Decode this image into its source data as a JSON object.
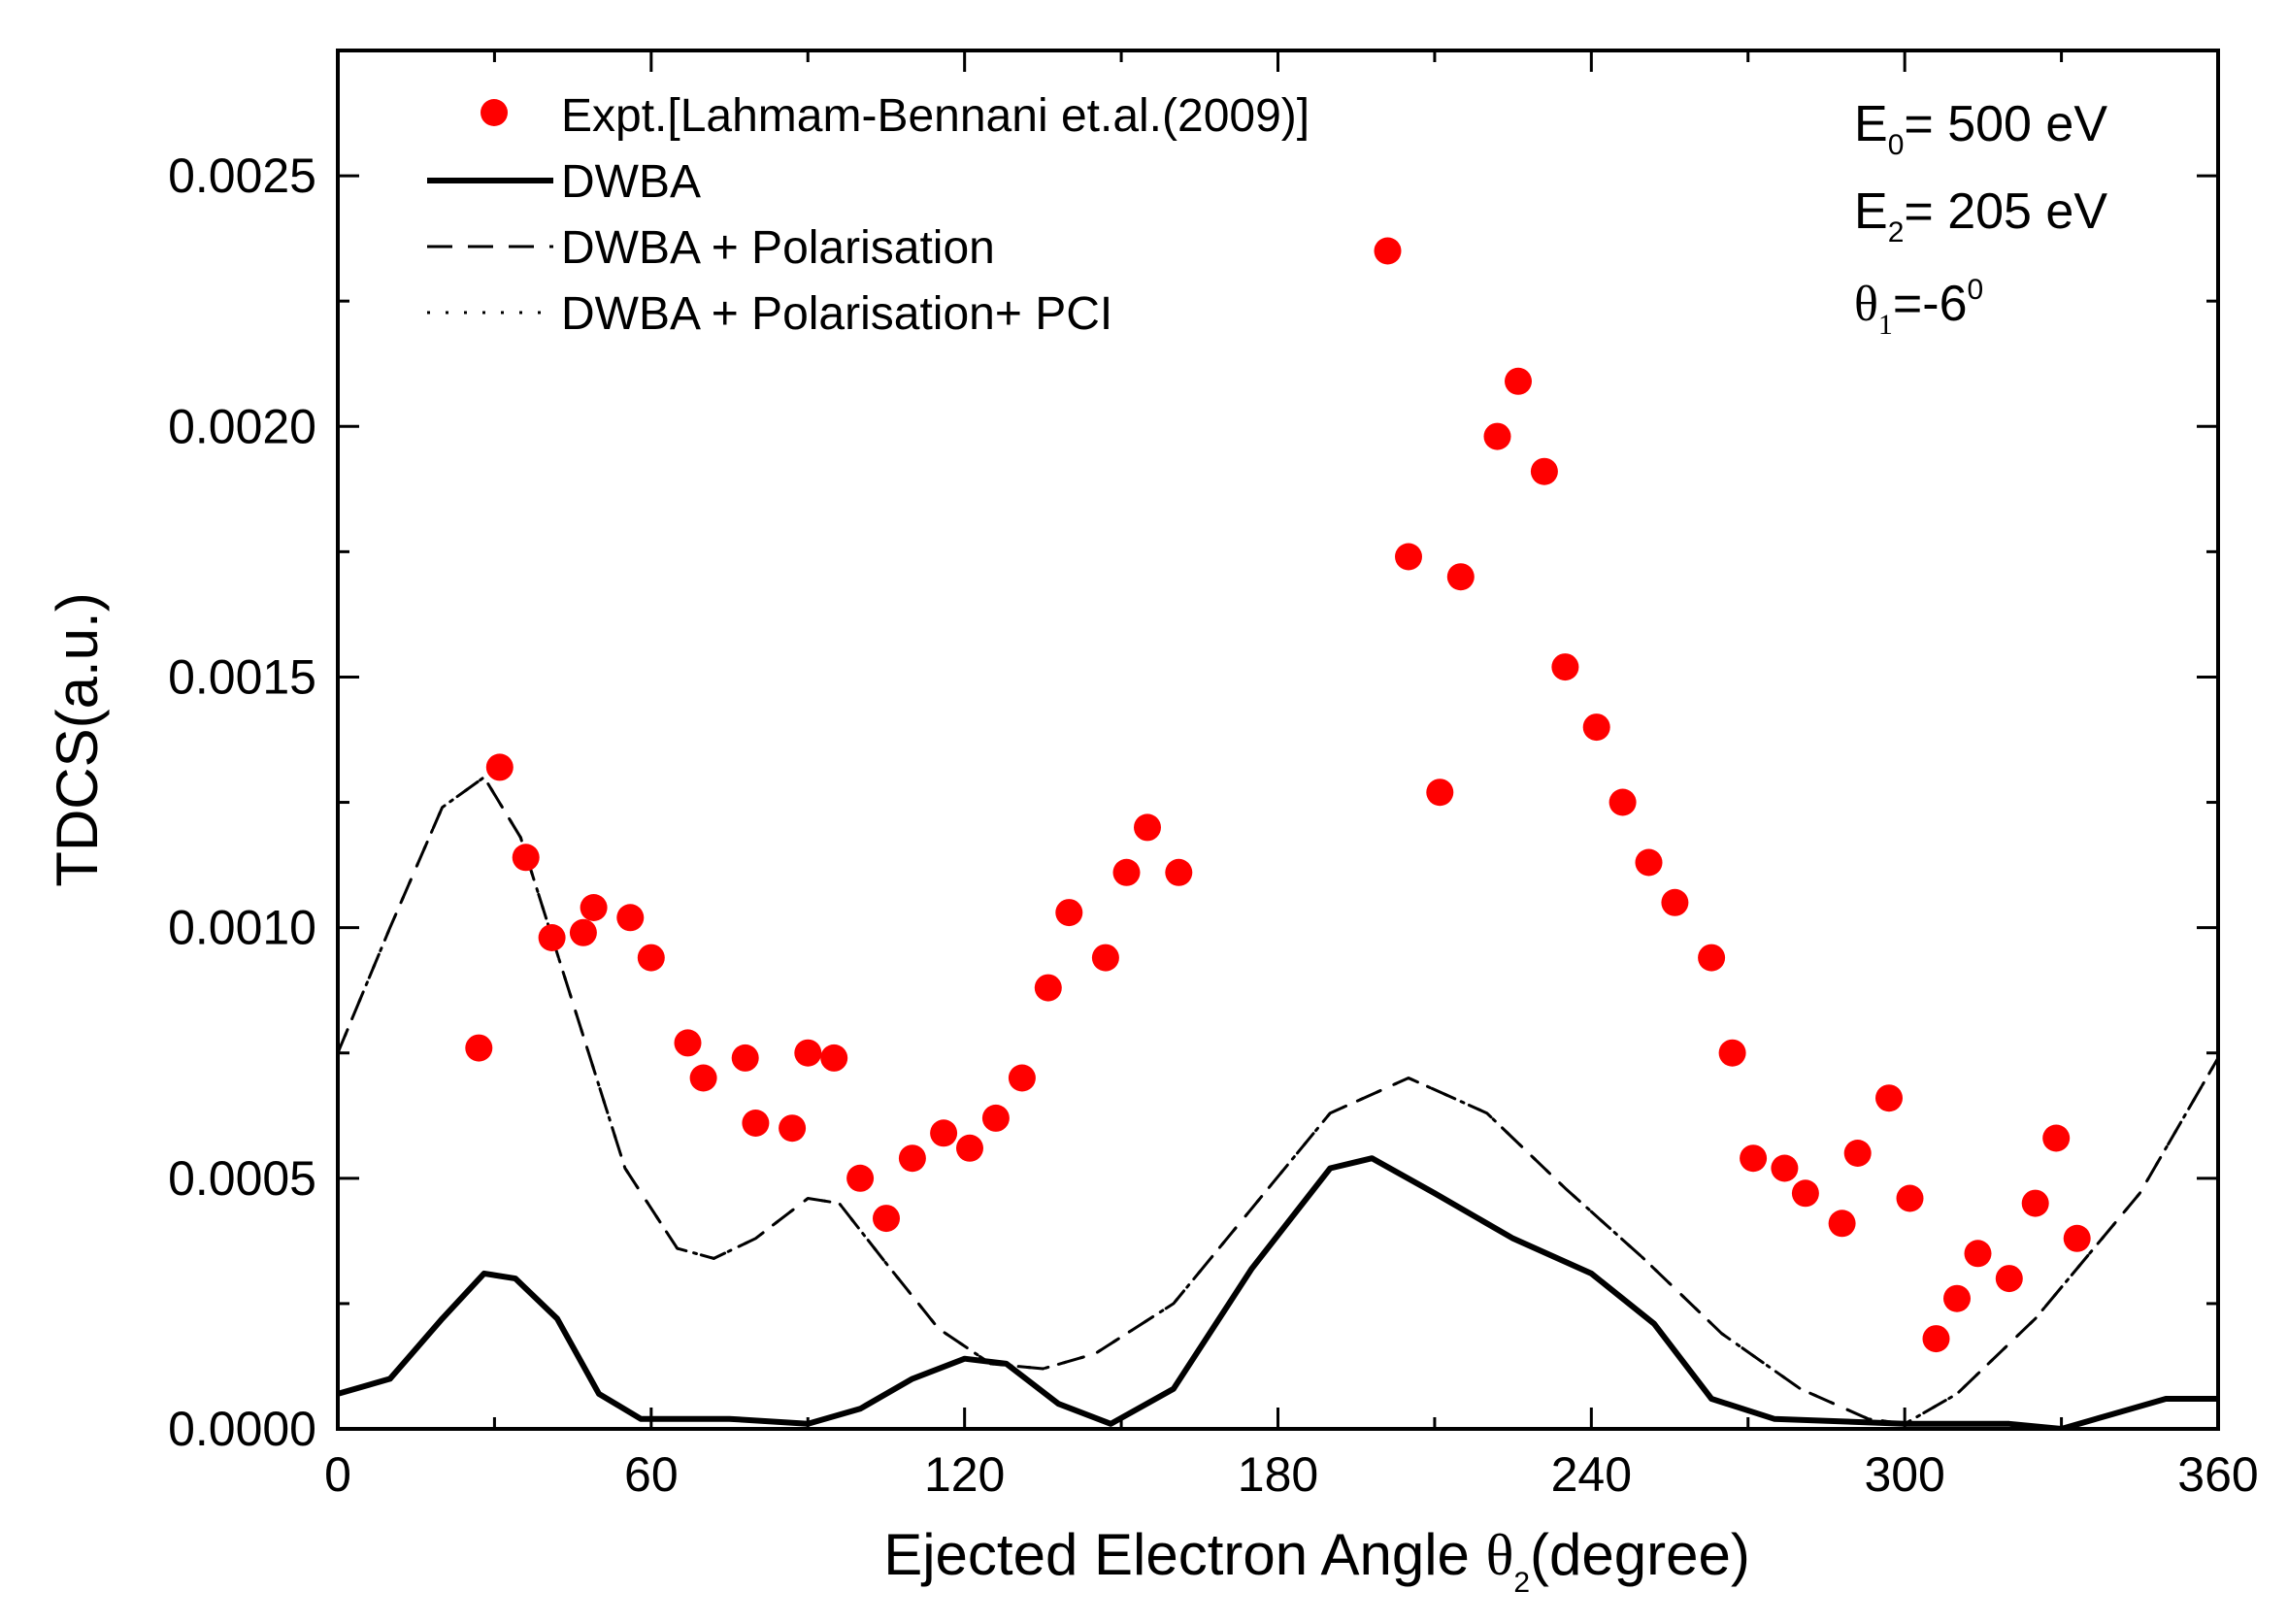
{
  "chart_data": {
    "type": "scatter",
    "xlabel_main": "Ejected Electron Angle ",
    "xlabel_symbol": "θ",
    "xlabel_sub": "2",
    "xlabel_tail": "(degree)",
    "ylabel": "TDCS(a.u.)",
    "xlim": [
      0,
      360
    ],
    "ylim": [
      0,
      0.00275
    ],
    "xticks": [
      0,
      60,
      120,
      180,
      240,
      300,
      360
    ],
    "xtick_labels": [
      "0",
      "60",
      "120",
      "180",
      "240",
      "300",
      "360"
    ],
    "yticks": [
      0,
      0.0005,
      0.001,
      0.0015,
      0.002,
      0.0025
    ],
    "ytick_labels": [
      "0.0000",
      "0.0005",
      "0.0010",
      "0.0015",
      "0.0020",
      "0.0025"
    ],
    "legend_position": "top-left",
    "annotations": {
      "e0": {
        "main": "E",
        "sub": "0",
        "tail": "= 500 eV"
      },
      "e2": {
        "main": "E",
        "sub": "2",
        "tail": "= 205 eV"
      },
      "theta1": {
        "main": "θ",
        "sub": "1",
        "tail": "=-6",
        "sup": "0"
      }
    },
    "series": [
      {
        "name": "Expt.[Lahmam-Bennani et.al.(2009)]",
        "style": "markers",
        "color": "#ff0000",
        "points": [
          [
            27,
            0.00076
          ],
          [
            31,
            0.00132
          ],
          [
            36,
            0.00114
          ],
          [
            41,
            0.00098
          ],
          [
            47,
            0.00099
          ],
          [
            49,
            0.00104
          ],
          [
            56,
            0.00102
          ],
          [
            60,
            0.00094
          ],
          [
            67,
            0.00077
          ],
          [
            70,
            0.0007
          ],
          [
            78,
            0.00074
          ],
          [
            80,
            0.00061
          ],
          [
            87,
            0.0006
          ],
          [
            90,
            0.00075
          ],
          [
            95,
            0.00074
          ],
          [
            100,
            0.0005
          ],
          [
            105,
            0.00042
          ],
          [
            110,
            0.00054
          ],
          [
            116,
            0.00059
          ],
          [
            121,
            0.00056
          ],
          [
            126,
            0.00062
          ],
          [
            131,
            0.0007
          ],
          [
            136,
            0.00088
          ],
          [
            140,
            0.00103
          ],
          [
            147,
            0.00094
          ],
          [
            151,
            0.00111
          ],
          [
            155,
            0.0012
          ],
          [
            161,
            0.00111
          ],
          [
            201,
            0.00235
          ],
          [
            205,
            0.00174
          ],
          [
            211,
            0.00127
          ],
          [
            215,
            0.0017
          ],
          [
            222,
            0.00198
          ],
          [
            226,
            0.00209
          ],
          [
            231,
            0.00191
          ],
          [
            235,
            0.00152
          ],
          [
            241,
            0.0014
          ],
          [
            246,
            0.00125
          ],
          [
            251,
            0.00113
          ],
          [
            256,
            0.00105
          ],
          [
            263,
            0.00094
          ],
          [
            267,
            0.00075
          ],
          [
            271,
            0.00054
          ],
          [
            277,
            0.00052
          ],
          [
            281,
            0.00047
          ],
          [
            288,
            0.00041
          ],
          [
            291,
            0.00055
          ],
          [
            297,
            0.00066
          ],
          [
            301,
            0.00046
          ],
          [
            306,
            0.00018
          ],
          [
            310,
            0.00026
          ],
          [
            314,
            0.00035
          ],
          [
            320,
            0.0003
          ],
          [
            325,
            0.00045
          ],
          [
            329,
            0.00058
          ],
          [
            333,
            0.00038
          ]
        ]
      },
      {
        "name": "DWBA",
        "style": "solid",
        "color": "#000000",
        "points": [
          [
            0,
            7e-05
          ],
          [
            10,
            0.0001
          ],
          [
            20,
            0.00022
          ],
          [
            28,
            0.00031
          ],
          [
            34,
            0.0003
          ],
          [
            42,
            0.00022
          ],
          [
            50,
            7e-05
          ],
          [
            58,
            2e-05
          ],
          [
            75,
            2e-05
          ],
          [
            90,
            1e-05
          ],
          [
            100,
            4e-05
          ],
          [
            110,
            0.0001
          ],
          [
            120,
            0.00014
          ],
          [
            128,
            0.00013
          ],
          [
            138,
            5e-05
          ],
          [
            148,
            1e-05
          ],
          [
            160,
            8e-05
          ],
          [
            175,
            0.00032
          ],
          [
            190,
            0.00052
          ],
          [
            198,
            0.00054
          ],
          [
            210,
            0.00047
          ],
          [
            225,
            0.00038
          ],
          [
            240,
            0.00031
          ],
          [
            252,
            0.00021
          ],
          [
            263,
            6e-05
          ],
          [
            275,
            2e-05
          ],
          [
            300,
            1e-05
          ],
          [
            320,
            1e-05
          ],
          [
            330,
            0
          ],
          [
            340,
            3e-05
          ],
          [
            350,
            6e-05
          ],
          [
            360,
            6e-05
          ]
        ]
      },
      {
        "name": "DWBA + Polarisation",
        "style": "dashed",
        "color": "#000000",
        "points": [
          [
            0,
            0.00075
          ],
          [
            10,
            0.001
          ],
          [
            20,
            0.00124
          ],
          [
            28,
            0.0013
          ],
          [
            35,
            0.00118
          ],
          [
            45,
            0.00085
          ],
          [
            55,
            0.00052
          ],
          [
            65,
            0.00036
          ],
          [
            72,
            0.00034
          ],
          [
            80,
            0.00038
          ],
          [
            90,
            0.00046
          ],
          [
            96,
            0.00045
          ],
          [
            105,
            0.00033
          ],
          [
            115,
            0.0002
          ],
          [
            125,
            0.00013
          ],
          [
            135,
            0.00012
          ],
          [
            145,
            0.00015
          ],
          [
            160,
            0.00025
          ],
          [
            175,
            0.00044
          ],
          [
            190,
            0.00063
          ],
          [
            205,
            0.0007
          ],
          [
            220,
            0.00063
          ],
          [
            235,
            0.00048
          ],
          [
            250,
            0.00034
          ],
          [
            265,
            0.00019
          ],
          [
            280,
            8e-05
          ],
          [
            293,
            2e-05
          ],
          [
            300,
            1e-05
          ],
          [
            310,
            7e-05
          ],
          [
            325,
            0.00022
          ],
          [
            345,
            0.00047
          ],
          [
            360,
            0.00074
          ]
        ]
      },
      {
        "name": "DWBA + Polarisation+ PCI",
        "style": "dotted",
        "color": "#000000",
        "points": [
          [
            0,
            0.00075
          ],
          [
            10,
            0.001
          ],
          [
            20,
            0.00124
          ],
          [
            28,
            0.0013
          ],
          [
            35,
            0.00118
          ],
          [
            45,
            0.00085
          ],
          [
            55,
            0.00052
          ],
          [
            65,
            0.00036
          ],
          [
            72,
            0.00034
          ],
          [
            80,
            0.00038
          ],
          [
            90,
            0.00046
          ],
          [
            96,
            0.00045
          ],
          [
            105,
            0.00033
          ],
          [
            115,
            0.0002
          ],
          [
            125,
            0.00013
          ],
          [
            135,
            0.00012
          ],
          [
            145,
            0.00015
          ],
          [
            160,
            0.00025
          ],
          [
            175,
            0.00044
          ],
          [
            190,
            0.00063
          ],
          [
            205,
            0.0007
          ],
          [
            220,
            0.00063
          ],
          [
            235,
            0.00048
          ],
          [
            250,
            0.00034
          ],
          [
            265,
            0.00019
          ],
          [
            280,
            8e-05
          ],
          [
            293,
            2e-05
          ],
          [
            300,
            1e-05
          ],
          [
            310,
            7e-05
          ],
          [
            325,
            0.00022
          ],
          [
            345,
            0.00047
          ],
          [
            360,
            0.00074
          ]
        ]
      }
    ]
  }
}
